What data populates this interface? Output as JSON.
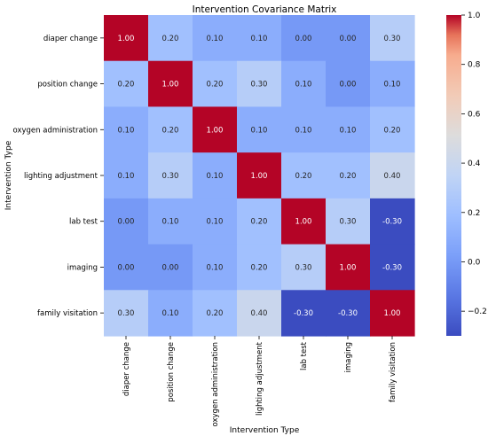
{
  "chart_data": {
    "type": "heatmap",
    "title": "Intervention Covariance Matrix",
    "xlabel": "Intervention Type",
    "ylabel": "Intervention Type",
    "rows": [
      "diaper change",
      "position change",
      "oxygen administration",
      "lighting adjustment",
      "lab test",
      "imaging",
      "family visitation"
    ],
    "columns": [
      "diaper change",
      "position change",
      "oxygen administration",
      "lighting adjustment",
      "lab test",
      "imaging",
      "family visitation"
    ],
    "values": [
      [
        1.0,
        0.2,
        0.1,
        0.1,
        0.0,
        0.0,
        0.3
      ],
      [
        0.2,
        1.0,
        0.2,
        0.3,
        0.1,
        0.0,
        0.1
      ],
      [
        0.1,
        0.2,
        1.0,
        0.1,
        0.1,
        0.1,
        0.2
      ],
      [
        0.1,
        0.3,
        0.1,
        1.0,
        0.2,
        0.2,
        0.4
      ],
      [
        0.0,
        0.1,
        0.1,
        0.2,
        1.0,
        0.3,
        -0.3
      ],
      [
        0.0,
        0.0,
        0.1,
        0.2,
        0.3,
        1.0,
        -0.3
      ],
      [
        0.3,
        0.1,
        0.2,
        0.4,
        -0.3,
        -0.3,
        1.0
      ]
    ],
    "value_format": "0.00",
    "colormap": "coolwarm",
    "vmin": -0.3,
    "vmax": 1.0,
    "colorbar_ticks": [
      1.0,
      0.8,
      0.6,
      0.4,
      0.2,
      0.0,
      -0.2
    ],
    "colorbar_tick_labels": [
      "1.0",
      "0.8",
      "0.6",
      "0.4",
      "0.2",
      "0.0",
      "−0.2"
    ],
    "annotation_colors": {
      "light_bg": "#262626",
      "dark_bg": "#ffffff"
    }
  }
}
